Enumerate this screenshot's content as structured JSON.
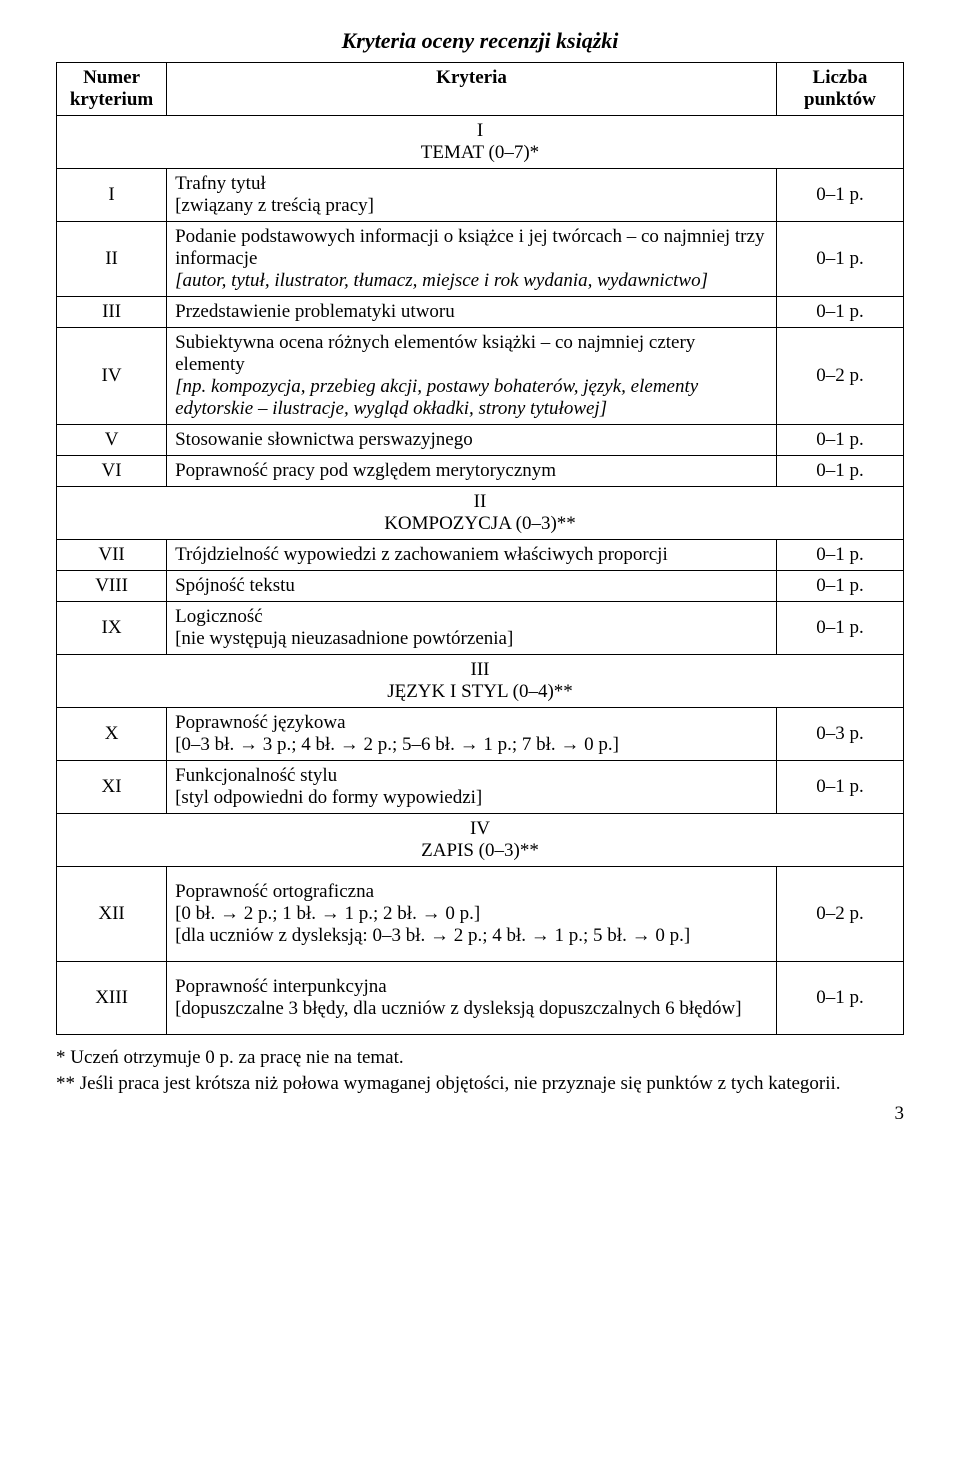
{
  "title": "Kryteria oceny recenzji książki",
  "headers": {
    "numer": "Numer kryterium",
    "kryteria": "Kryteria",
    "liczba": "Liczba punktów"
  },
  "sections": {
    "s1": {
      "num": "I",
      "label": "TEMAT (0–7)*"
    },
    "s2": {
      "num": "II",
      "label": "KOMPOZYCJA  (0–3)**"
    },
    "s3": {
      "num": "III",
      "label": "JĘZYK I STYL (0–4)**"
    },
    "s4": {
      "num": "IV",
      "label": "ZAPIS (0–3)**"
    }
  },
  "rows": {
    "r1": {
      "num": "I",
      "text_a": "Trafny tytuł",
      "text_b": "[związany z treścią pracy]",
      "points": "0–1 p."
    },
    "r2": {
      "num": "II",
      "text_a": "Podanie podstawowych informacji o książce i jej twórcach – co najmniej trzy informacje",
      "text_b": "[autor, tytuł, ilustrator, tłumacz, miejsce i rok wydania, wydawnictwo]",
      "points": "0–1 p."
    },
    "r3": {
      "num": "III",
      "text_a": "Przedstawienie problematyki utworu",
      "points": "0–1 p."
    },
    "r4": {
      "num": "IV",
      "text_a": "Subiektywna ocena różnych elementów książki – co najmniej cztery elementy",
      "text_b": "[np. kompozycja, przebieg akcji, postawy bohaterów, język, elementy edytorskie – ilustracje, wygląd okładki, strony tytułowej]",
      "points": "0–2 p."
    },
    "r5": {
      "num": "V",
      "text_a": "Stosowanie słownictwa perswazyjnego",
      "points": "0–1 p."
    },
    "r6": {
      "num": "VI",
      "text_a": "Poprawność pracy pod względem merytorycznym",
      "points": "0–1 p."
    },
    "r7": {
      "num": "VII",
      "text_a": "Trójdzielność wypowiedzi z zachowaniem właściwych proporcji",
      "points": "0–1 p."
    },
    "r8": {
      "num": "VIII",
      "text_a": "Spójność tekstu",
      "points": "0–1 p."
    },
    "r9": {
      "num": "IX",
      "text_a": "Logiczność",
      "text_b": "[nie występują nieuzasadnione powtórzenia]",
      "points": "0–1 p."
    },
    "r10": {
      "num": "X",
      "text_a": "Poprawność językowa",
      "text_b": "[0–3 bł. → 3 p.; 4 bł. → 2 p.; 5–6 bł. → 1 p.; 7 bł. → 0 p.]",
      "points": "0–3 p."
    },
    "r11": {
      "num": "XI",
      "text_a": "Funkcjonalność stylu",
      "text_b": "[styl odpowiedni do formy wypowiedzi]",
      "points": "0–1 p."
    },
    "r12": {
      "num": "XII",
      "text_a": "Poprawność ortograficzna",
      "text_b": "[0 bł. → 2 p.; 1 bł. → 1 p.; 2 bł. → 0 p.]",
      "text_c": "[dla uczniów z dysleksją: 0–3 bł. → 2 p.; 4 bł. → 1 p.; 5 bł. → 0 p.]",
      "points": "0–2 p."
    },
    "r13": {
      "num": "XIII",
      "text_a": "Poprawność interpunkcyjna",
      "text_b": "[dopuszczalne 3 błędy, dla uczniów z dysleksją dopuszczalnych 6 błędów]",
      "points": "0–1 p."
    }
  },
  "footnotes": {
    "a": "* Uczeń otrzymuje 0 p. za pracę nie na temat.",
    "b": "** Jeśli praca jest krótsza niż połowa wymaganej objętości, nie przyznaje się punktów z tych kategorii."
  },
  "page_number": "3"
}
